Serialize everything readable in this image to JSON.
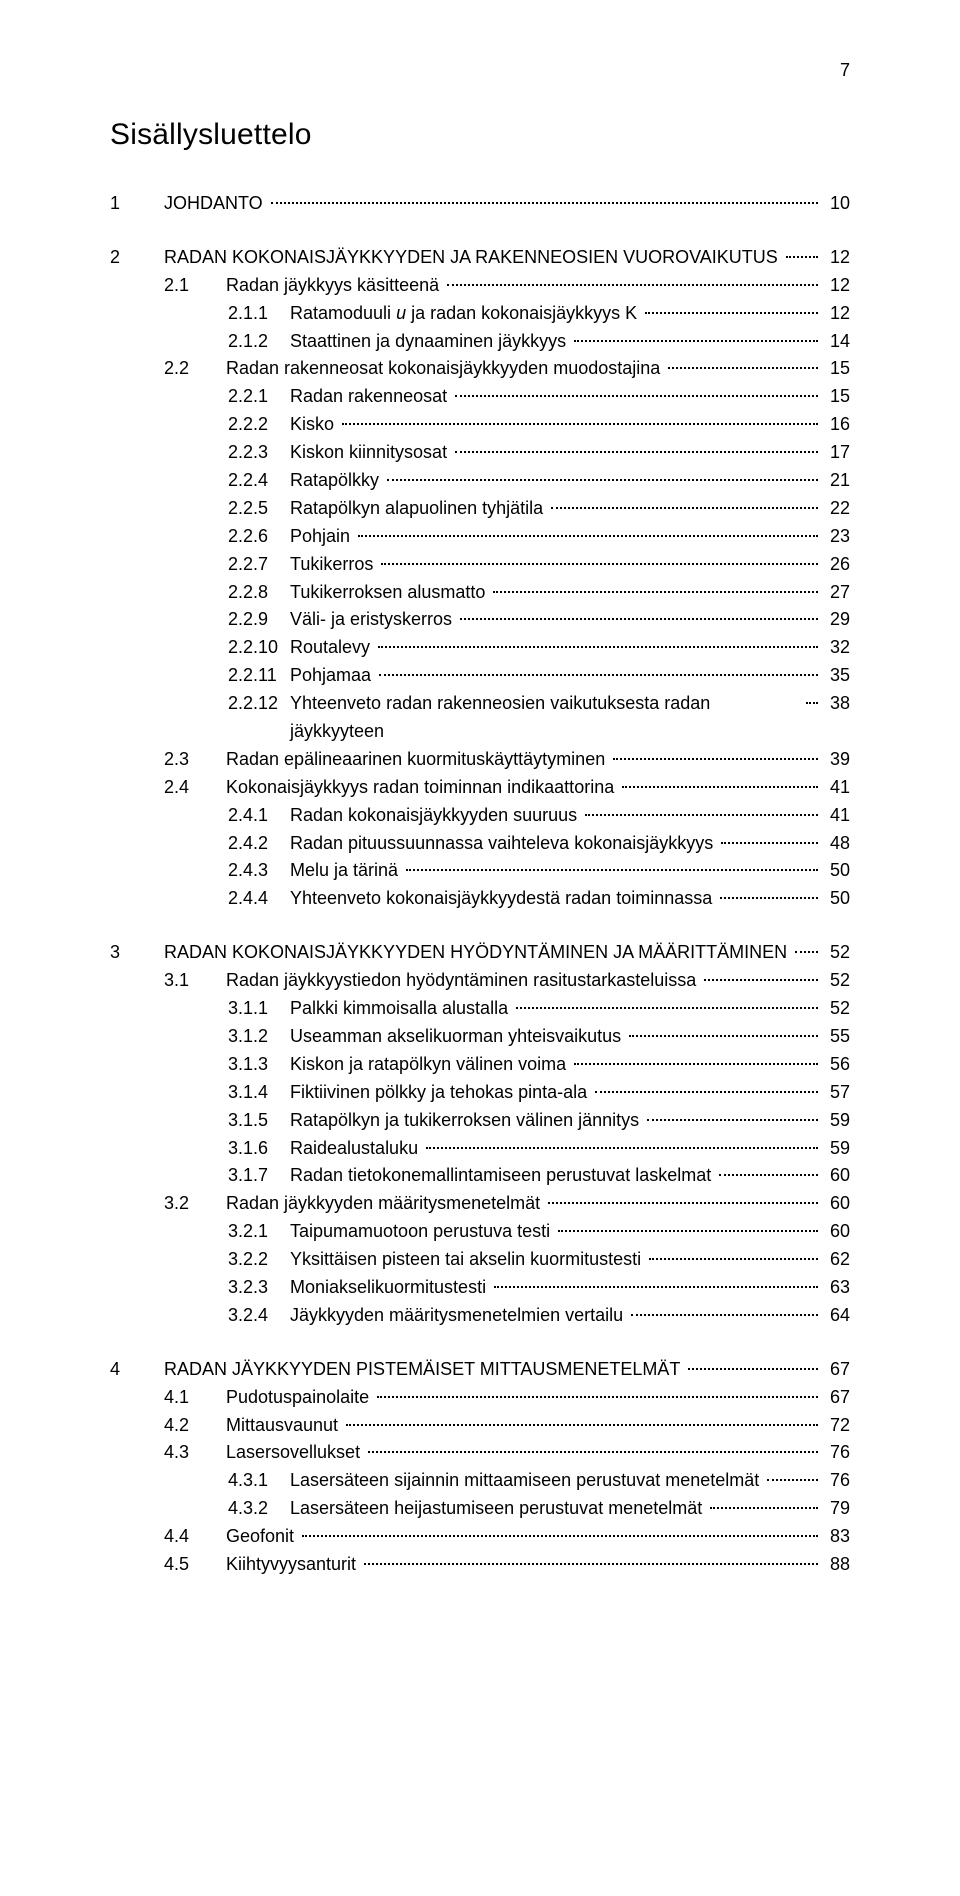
{
  "page_number": "7",
  "title": "Sisällysluettelo",
  "colors": {
    "text": "#000000",
    "background": "#ffffff",
    "leader": "#000000"
  },
  "font": {
    "family": "Arial, Helvetica, sans-serif",
    "title_size_pt": 22,
    "body_size_pt": 13
  },
  "toc": [
    {
      "rows": [
        {
          "level": 0,
          "num": "1",
          "label": "JOHDANTO",
          "page": "10"
        }
      ]
    },
    {
      "rows": [
        {
          "level": 0,
          "num": "2",
          "label": "RADAN KOKONAISJÄYKKYYDEN JA RAKENNEOSIEN VUOROVAIKUTUS",
          "page": "12"
        },
        {
          "level": 1,
          "num": "2.1",
          "label": "Radan jäykkyys käsitteenä",
          "page": "12"
        },
        {
          "level": 2,
          "num": "2.1.1",
          "label_html": "Ratamoduuli <span class=\"italic\">u</span> ja radan kokonaisjäykkyys K",
          "page": "12"
        },
        {
          "level": 2,
          "num": "2.1.2",
          "label": "Staattinen ja dynaaminen jäykkyys",
          "page": "14"
        },
        {
          "level": 1,
          "num": "2.2",
          "label": "Radan rakenneosat kokonaisjäykkyyden muodostajina",
          "page": "15"
        },
        {
          "level": 2,
          "num": "2.2.1",
          "label": "Radan rakenneosat",
          "page": "15"
        },
        {
          "level": 2,
          "num": "2.2.2",
          "label": "Kisko",
          "page": "16"
        },
        {
          "level": 2,
          "num": "2.2.3",
          "label": "Kiskon kiinnitysosat",
          "page": "17"
        },
        {
          "level": 2,
          "num": "2.2.4",
          "label": "Ratapölkky",
          "page": "21"
        },
        {
          "level": 2,
          "num": "2.2.5",
          "label": "Ratapölkyn alapuolinen tyhjätila",
          "page": "22"
        },
        {
          "level": 2,
          "num": "2.2.6",
          "label": "Pohjain",
          "page": "23"
        },
        {
          "level": 2,
          "num": "2.2.7",
          "label": "Tukikerros",
          "page": "26"
        },
        {
          "level": 2,
          "num": "2.2.8",
          "label": "Tukikerroksen alusmatto",
          "page": "27"
        },
        {
          "level": 2,
          "num": "2.2.9",
          "label": "Väli- ja eristyskerros",
          "page": "29"
        },
        {
          "level": 2,
          "num": "2.2.10",
          "label": "Routalevy",
          "page": "32"
        },
        {
          "level": 2,
          "num": "2.2.11",
          "label": "Pohjamaa",
          "page": "35"
        },
        {
          "level": 2,
          "num": "2.2.12",
          "label": "Yhteenveto radan rakenneosien vaikutuksesta radan jäykkyyteen",
          "page": "38"
        },
        {
          "level": 1,
          "num": "2.3",
          "label": "Radan epälineaarinen kuormituskäyttäytyminen",
          "page": "39"
        },
        {
          "level": 1,
          "num": "2.4",
          "label": "Kokonaisjäykkyys radan toiminnan indikaattorina",
          "page": "41"
        },
        {
          "level": 2,
          "num": "2.4.1",
          "label": "Radan kokonaisjäykkyyden suuruus",
          "page": "41"
        },
        {
          "level": 2,
          "num": "2.4.2",
          "label": "Radan pituussuunnassa vaihteleva kokonaisjäykkyys",
          "page": "48"
        },
        {
          "level": 2,
          "num": "2.4.3",
          "label": "Melu ja tärinä",
          "page": "50"
        },
        {
          "level": 2,
          "num": "2.4.4",
          "label": "Yhteenveto kokonaisjäykkyydestä radan toiminnassa",
          "page": "50"
        }
      ]
    },
    {
      "rows": [
        {
          "level": 0,
          "num": "3",
          "label": "RADAN KOKONAISJÄYKKYYDEN HYÖDYNTÄMINEN JA MÄÄRITTÄMINEN",
          "page": "52"
        },
        {
          "level": 1,
          "num": "3.1",
          "label": "Radan jäykkyystiedon hyödyntäminen rasitustarkasteluissa",
          "page": "52"
        },
        {
          "level": 2,
          "num": "3.1.1",
          "label": "Palkki kimmoisalla alustalla",
          "page": "52"
        },
        {
          "level": 2,
          "num": "3.1.2",
          "label": "Useamman akselikuorman yhteisvaikutus",
          "page": "55"
        },
        {
          "level": 2,
          "num": "3.1.3",
          "label": "Kiskon ja ratapölkyn välinen voima",
          "page": "56"
        },
        {
          "level": 2,
          "num": "3.1.4",
          "label": "Fiktiivinen pölkky ja tehokas pinta-ala",
          "page": "57"
        },
        {
          "level": 2,
          "num": "3.1.5",
          "label": "Ratapölkyn ja tukikerroksen välinen jännitys",
          "page": "59"
        },
        {
          "level": 2,
          "num": "3.1.6",
          "label": "Raidealustaluku",
          "page": "59"
        },
        {
          "level": 2,
          "num": "3.1.7",
          "label": "Radan tietokonemallintamiseen perustuvat laskelmat",
          "page": "60"
        },
        {
          "level": 1,
          "num": "3.2",
          "label": "Radan jäykkyyden määritysmenetelmät",
          "page": "60"
        },
        {
          "level": 2,
          "num": "3.2.1",
          "label": "Taipumamuotoon perustuva testi",
          "page": "60"
        },
        {
          "level": 2,
          "num": "3.2.2",
          "label": "Yksittäisen pisteen tai akselin kuormitustesti",
          "page": "62"
        },
        {
          "level": 2,
          "num": "3.2.3",
          "label": "Moniakselikuormitustesti",
          "page": "63"
        },
        {
          "level": 2,
          "num": "3.2.4",
          "label": "Jäykkyyden määritysmenetelmien vertailu",
          "page": "64"
        }
      ]
    },
    {
      "rows": [
        {
          "level": 0,
          "num": "4",
          "label": "RADAN JÄYKKYYDEN PISTEMÄISET MITTAUSMENETELMÄT",
          "page": "67"
        },
        {
          "level": 1,
          "num": "4.1",
          "label": "Pudotuspainolaite",
          "page": "67"
        },
        {
          "level": 1,
          "num": "4.2",
          "label": "Mittausvaunut",
          "page": "72"
        },
        {
          "level": 1,
          "num": "4.3",
          "label": "Lasersovellukset",
          "page": "76"
        },
        {
          "level": 2,
          "num": "4.3.1",
          "label": "Lasersäteen sijainnin mittaamiseen perustuvat menetelmät",
          "page": "76"
        },
        {
          "level": 2,
          "num": "4.3.2",
          "label": "Lasersäteen heijastumiseen perustuvat menetelmät",
          "page": "79"
        },
        {
          "level": 1,
          "num": "4.4",
          "label": "Geofonit",
          "page": "83"
        },
        {
          "level": 1,
          "num": "4.5",
          "label": "Kiihtyvyysanturit",
          "page": "88"
        }
      ]
    }
  ]
}
